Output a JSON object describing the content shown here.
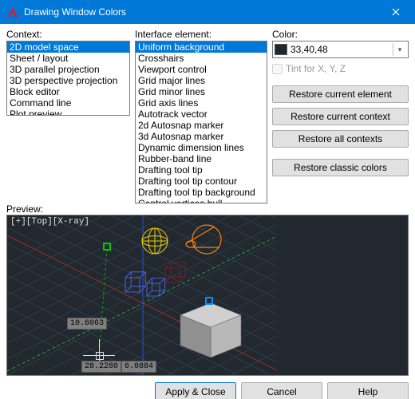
{
  "window": {
    "title": "Drawing Window Colors"
  },
  "labels": {
    "context": "Context:",
    "interface": "Interface element:",
    "color": "Color:",
    "tint": "Tint for X, Y, Z",
    "preview": "Preview:"
  },
  "context_items": [
    "2D model space",
    "Sheet / layout",
    "3D parallel projection",
    "3D perspective projection",
    "Block editor",
    "Command line",
    "Plot preview"
  ],
  "context_selected": 0,
  "interface_items": [
    "Uniform background",
    "Crosshairs",
    "Viewport control",
    "Grid major lines",
    "Grid minor lines",
    "Grid axis lines",
    "Autotrack vector",
    "2d Autosnap marker",
    "3d Autosnap marker",
    "Dynamic dimension lines",
    "Rubber-band line",
    "Drafting tool tip",
    "Drafting tool tip contour",
    "Drafting tool tip background",
    "Control vertices hull"
  ],
  "interface_selected": 0,
  "color_value": "33,40,48",
  "color_swatch": "#212830",
  "buttons": {
    "restore_element": "Restore current element",
    "restore_context": "Restore current context",
    "restore_all": "Restore all contexts",
    "restore_classic": "Restore classic colors",
    "apply_close": "Apply & Close",
    "cancel": "Cancel",
    "help": "Help"
  },
  "preview": {
    "background": "#212830",
    "grid_color": "#3a4450",
    "axis_x_color": "#a03030",
    "axis_y_color": "#30a030",
    "axis_z_color": "#3050c0",
    "viewport_label": "[+][Top][X-ray]",
    "viewport_label_color": "#d0d0d0",
    "handle_green": "#00c800",
    "handle_blue": "#0090ff",
    "sphere_color": "#f0d000",
    "cone_color": "#ff8000",
    "cage_color": "#5070ff",
    "rubber_cage_color": "#802020",
    "cursor_color": "#e0e0e0",
    "coord1": "10.6063",
    "coord2a": "28.2280",
    "coord2b": "6.0884",
    "cube_fill": "#b8b8b8",
    "cube_fill_dark": "#909090",
    "cube_fill_top": "#d0d0d0"
  }
}
